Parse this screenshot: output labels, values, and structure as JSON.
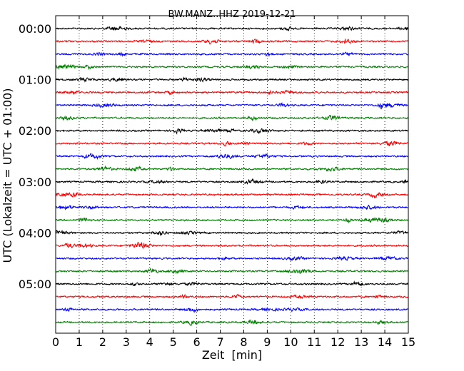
{
  "chart_data": {
    "type": "line",
    "chart_kind": "helicorder",
    "title": "BW.MANZ..HHZ 2019-12-21",
    "xlabel": "Zeit  [min]",
    "ylabel": "UTC (Lokalzeit = UTC + 01:00)",
    "xlim": [
      0,
      15
    ],
    "x_ticks": [
      "0",
      "1",
      "2",
      "3",
      "4",
      "5",
      "6",
      "7",
      "8",
      "9",
      "10",
      "11",
      "12",
      "13",
      "14",
      "15"
    ],
    "y_ticks": [
      "00:00",
      "01:00",
      "02:00",
      "03:00",
      "04:00",
      "05:00"
    ],
    "rows": 24,
    "minutes_per_row": 15,
    "color_cycle": [
      "#000000",
      "#ff0000",
      "#0000ff",
      "#007f00"
    ],
    "grid": "vertical dotted lines at each minute",
    "legend": "none"
  }
}
